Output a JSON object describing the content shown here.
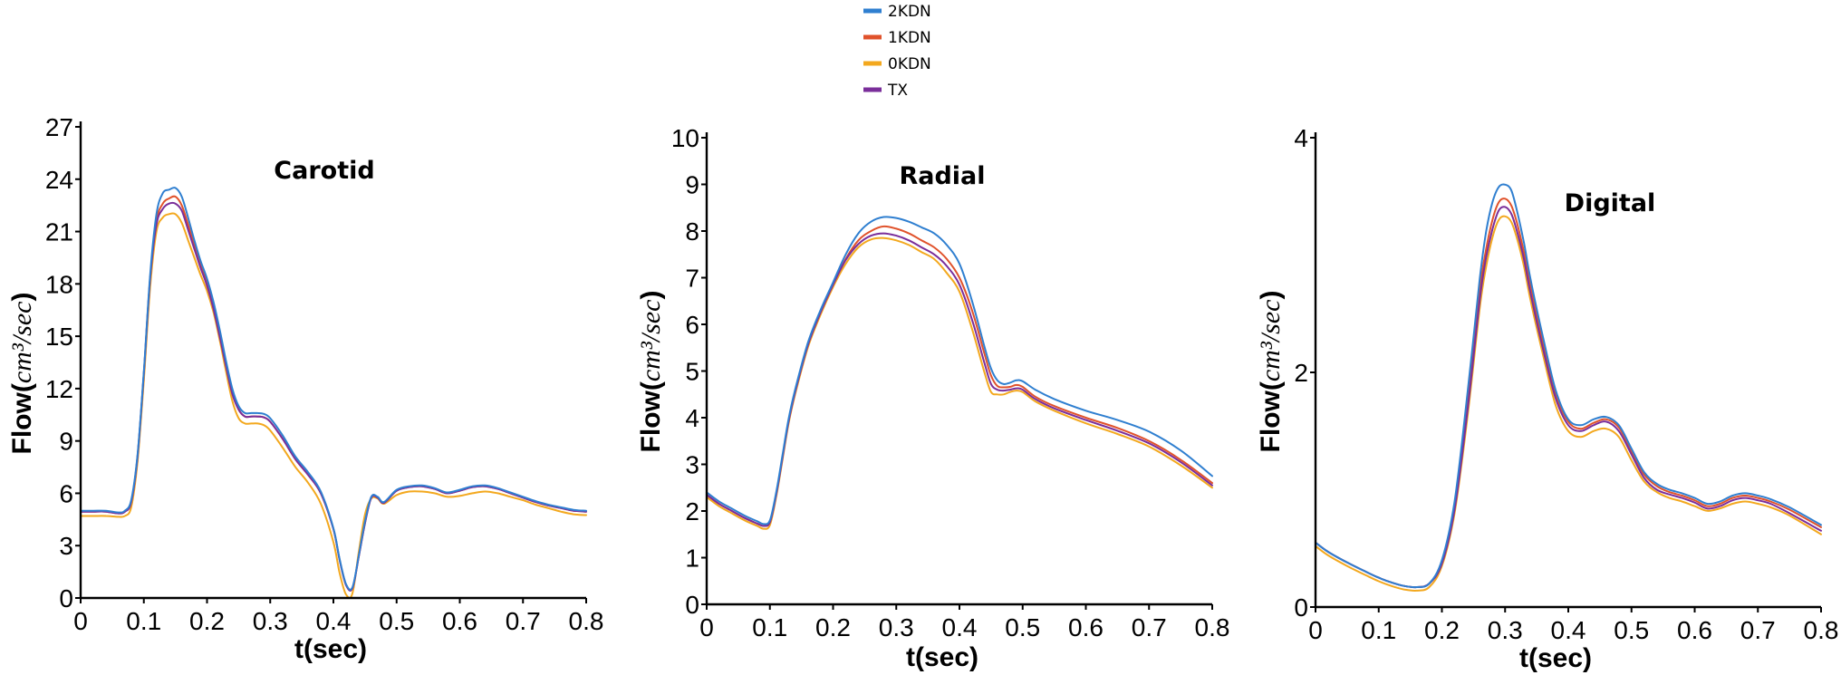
{
  "legend": [
    {
      "label": "2KDN",
      "color": "#2f7fd0"
    },
    {
      "label": "1KDN",
      "color": "#e0522b"
    },
    {
      "label": "0KDN",
      "color": "#f3a81e"
    },
    {
      "label": "TX",
      "color": "#7a2e9a"
    }
  ],
  "chart_data": [
    {
      "type": "line",
      "title": "Carotid",
      "xlabel": "t(sec)",
      "ylabel_prefix": "Flow(",
      "ylabel_math": "cm³/sec",
      "ylabel_suffix": ")",
      "xlim": [
        0,
        0.8
      ],
      "ylim": [
        0,
        27
      ],
      "xticks": [
        0,
        0.1,
        0.2,
        0.3,
        0.4,
        0.5,
        0.6,
        0.7,
        0.8
      ],
      "xtick_labels": [
        "0",
        "0.1",
        "0.2",
        "0.3",
        "0.4",
        "0.5",
        "0.6",
        "0.7",
        "0.8"
      ],
      "yticks": [
        0,
        3,
        6,
        9,
        12,
        15,
        18,
        21,
        24,
        27
      ],
      "ytick_labels": [
        "0",
        "3",
        "6",
        "9",
        "12",
        "15",
        "18",
        "21",
        "24",
        "27"
      ],
      "x": [
        0,
        0.02,
        0.04,
        0.06,
        0.07,
        0.08,
        0.09,
        0.1,
        0.11,
        0.12,
        0.13,
        0.14,
        0.15,
        0.16,
        0.17,
        0.18,
        0.19,
        0.2,
        0.21,
        0.22,
        0.23,
        0.24,
        0.25,
        0.26,
        0.27,
        0.28,
        0.29,
        0.3,
        0.32,
        0.34,
        0.36,
        0.38,
        0.4,
        0.41,
        0.42,
        0.43,
        0.44,
        0.45,
        0.46,
        0.47,
        0.48,
        0.5,
        0.52,
        0.54,
        0.56,
        0.58,
        0.6,
        0.62,
        0.64,
        0.66,
        0.68,
        0.7,
        0.72,
        0.74,
        0.76,
        0.78,
        0.8
      ],
      "series": [
        {
          "name": "2KDN",
          "values": [
            5.0,
            5.0,
            5.0,
            4.9,
            5.0,
            5.6,
            8.2,
            13.0,
            18.5,
            22.0,
            23.2,
            23.4,
            23.5,
            23.0,
            21.8,
            20.5,
            19.3,
            18.3,
            17.0,
            15.4,
            13.6,
            12.0,
            11.0,
            10.6,
            10.6,
            10.6,
            10.55,
            10.3,
            9.3,
            8.1,
            7.2,
            6.1,
            4.0,
            2.2,
            0.8,
            0.6,
            2.4,
            4.4,
            5.8,
            5.8,
            5.5,
            6.2,
            6.4,
            6.45,
            6.3,
            6.05,
            6.2,
            6.4,
            6.45,
            6.3,
            6.05,
            5.8,
            5.55,
            5.35,
            5.2,
            5.05,
            5.0
          ]
        },
        {
          "name": "1KDN",
          "values": [
            4.95,
            4.95,
            4.95,
            4.85,
            4.95,
            5.5,
            8.1,
            12.9,
            18.3,
            21.6,
            22.6,
            22.9,
            23.0,
            22.5,
            21.4,
            20.2,
            19.1,
            18.1,
            16.8,
            15.2,
            13.4,
            11.8,
            10.8,
            10.4,
            10.4,
            10.4,
            10.35,
            10.1,
            9.1,
            7.95,
            7.05,
            6.0,
            3.95,
            2.15,
            0.75,
            0.55,
            2.35,
            4.3,
            5.75,
            5.75,
            5.45,
            6.15,
            6.35,
            6.4,
            6.25,
            6.0,
            6.15,
            6.35,
            6.4,
            6.25,
            6.0,
            5.75,
            5.5,
            5.3,
            5.15,
            5.0,
            4.95
          ]
        },
        {
          "name": "0KDN",
          "values": [
            4.7,
            4.7,
            4.7,
            4.65,
            4.7,
            5.2,
            7.8,
            12.5,
            17.8,
            21.0,
            21.8,
            22.0,
            22.0,
            21.5,
            20.5,
            19.5,
            18.5,
            17.6,
            16.4,
            14.8,
            13.0,
            11.3,
            10.3,
            10.0,
            10.0,
            10.0,
            9.9,
            9.6,
            8.6,
            7.5,
            6.6,
            5.4,
            3.2,
            1.4,
            0.2,
            0.25,
            2.6,
            4.8,
            5.7,
            5.7,
            5.4,
            5.9,
            6.1,
            6.1,
            6.0,
            5.8,
            5.85,
            6.0,
            6.1,
            6.0,
            5.8,
            5.6,
            5.35,
            5.15,
            4.95,
            4.8,
            4.75
          ]
        },
        {
          "name": "TX",
          "values": [
            4.95,
            4.95,
            4.95,
            4.85,
            4.95,
            5.5,
            8.1,
            12.9,
            18.3,
            21.4,
            22.3,
            22.6,
            22.6,
            22.2,
            21.1,
            20.0,
            18.9,
            17.9,
            16.6,
            15.0,
            13.3,
            11.7,
            10.8,
            10.4,
            10.4,
            10.4,
            10.35,
            10.1,
            9.1,
            7.95,
            7.05,
            6.0,
            3.95,
            2.15,
            0.75,
            0.55,
            2.35,
            4.3,
            5.75,
            5.75,
            5.45,
            6.15,
            6.35,
            6.4,
            6.25,
            6.0,
            6.15,
            6.35,
            6.4,
            6.25,
            6.0,
            5.75,
            5.5,
            5.3,
            5.15,
            5.0,
            4.95
          ]
        }
      ]
    },
    {
      "type": "line",
      "title": "Radial",
      "xlabel": "t(sec)",
      "ylabel_prefix": "Flow(",
      "ylabel_math": "cm³/sec",
      "ylabel_suffix": ")",
      "xlim": [
        0,
        0.8
      ],
      "ylim": [
        0,
        10
      ],
      "xticks": [
        0,
        0.1,
        0.2,
        0.3,
        0.4,
        0.5,
        0.6,
        0.7,
        0.8
      ],
      "xtick_labels": [
        "0",
        "0.1",
        "0.2",
        "0.3",
        "0.4",
        "0.5",
        "0.6",
        "0.7",
        "0.8"
      ],
      "yticks": [
        0,
        1,
        2,
        3,
        4,
        5,
        6,
        7,
        8,
        9,
        10
      ],
      "ytick_labels": [
        "0",
        "1",
        "2",
        "3",
        "4",
        "5",
        "6",
        "7",
        "8",
        "9",
        "10"
      ],
      "x": [
        0,
        0.02,
        0.04,
        0.06,
        0.08,
        0.09,
        0.1,
        0.11,
        0.12,
        0.13,
        0.14,
        0.16,
        0.18,
        0.2,
        0.22,
        0.24,
        0.26,
        0.28,
        0.3,
        0.32,
        0.34,
        0.36,
        0.38,
        0.4,
        0.42,
        0.44,
        0.45,
        0.46,
        0.47,
        0.48,
        0.49,
        0.5,
        0.52,
        0.55,
        0.6,
        0.65,
        0.7,
        0.75,
        0.8
      ],
      "series": [
        {
          "name": "2KDN",
          "values": [
            2.4,
            2.2,
            2.05,
            1.9,
            1.78,
            1.72,
            1.8,
            2.4,
            3.2,
            4.0,
            4.6,
            5.6,
            6.3,
            6.9,
            7.5,
            7.95,
            8.2,
            8.3,
            8.28,
            8.2,
            8.08,
            7.95,
            7.7,
            7.3,
            6.5,
            5.5,
            5.05,
            4.8,
            4.72,
            4.75,
            4.8,
            4.78,
            4.6,
            4.4,
            4.15,
            3.95,
            3.7,
            3.3,
            2.75
          ]
        },
        {
          "name": "1KDN",
          "values": [
            2.35,
            2.15,
            2.0,
            1.85,
            1.73,
            1.68,
            1.76,
            2.35,
            3.15,
            3.95,
            4.55,
            5.55,
            6.25,
            6.85,
            7.4,
            7.8,
            8.0,
            8.1,
            8.05,
            7.95,
            7.8,
            7.65,
            7.4,
            7.0,
            6.3,
            5.35,
            4.9,
            4.68,
            4.65,
            4.66,
            4.7,
            4.66,
            4.45,
            4.25,
            4.0,
            3.78,
            3.5,
            3.1,
            2.6
          ]
        },
        {
          "name": "0KDN",
          "values": [
            2.3,
            2.1,
            1.95,
            1.8,
            1.68,
            1.62,
            1.7,
            2.3,
            3.1,
            3.9,
            4.5,
            5.5,
            6.2,
            6.8,
            7.3,
            7.65,
            7.82,
            7.85,
            7.8,
            7.7,
            7.55,
            7.4,
            7.1,
            6.7,
            5.9,
            4.95,
            4.55,
            4.5,
            4.5,
            4.55,
            4.58,
            4.55,
            4.35,
            4.15,
            3.88,
            3.65,
            3.38,
            2.98,
            2.5
          ]
        },
        {
          "name": "TX",
          "values": [
            2.35,
            2.15,
            2.0,
            1.85,
            1.73,
            1.68,
            1.76,
            2.35,
            3.15,
            3.95,
            4.55,
            5.55,
            6.25,
            6.85,
            7.38,
            7.72,
            7.9,
            7.95,
            7.9,
            7.8,
            7.65,
            7.5,
            7.25,
            6.85,
            6.1,
            5.15,
            4.72,
            4.6,
            4.58,
            4.6,
            4.63,
            4.6,
            4.4,
            4.2,
            3.95,
            3.72,
            3.45,
            3.05,
            2.55
          ]
        }
      ]
    },
    {
      "type": "line",
      "title": "Digital",
      "xlabel": "t(sec)",
      "ylabel_prefix": "Flow(",
      "ylabel_math": "cm³/sec",
      "ylabel_suffix": ")",
      "xlim": [
        0,
        0.8
      ],
      "ylim": [
        0,
        4
      ],
      "xticks": [
        0,
        0.1,
        0.2,
        0.3,
        0.4,
        0.5,
        0.6,
        0.7,
        0.8
      ],
      "xtick_labels": [
        "0",
        "0.1",
        "0.2",
        "0.3",
        "0.4",
        "0.5",
        "0.6",
        "0.7",
        "0.8"
      ],
      "yticks": [
        0,
        2,
        4
      ],
      "ytick_labels": [
        "0",
        "2",
        "4"
      ],
      "x": [
        0,
        0.02,
        0.05,
        0.08,
        0.1,
        0.12,
        0.14,
        0.16,
        0.18,
        0.2,
        0.22,
        0.24,
        0.26,
        0.27,
        0.28,
        0.29,
        0.3,
        0.31,
        0.32,
        0.33,
        0.34,
        0.36,
        0.38,
        0.4,
        0.42,
        0.44,
        0.46,
        0.48,
        0.5,
        0.52,
        0.54,
        0.56,
        0.58,
        0.6,
        0.62,
        0.64,
        0.66,
        0.68,
        0.7,
        0.72,
        0.75,
        0.8
      ],
      "series": [
        {
          "name": "2KDN",
          "values": [
            0.55,
            0.47,
            0.38,
            0.3,
            0.25,
            0.21,
            0.18,
            0.17,
            0.2,
            0.4,
            0.9,
            1.8,
            2.8,
            3.2,
            3.45,
            3.58,
            3.6,
            3.55,
            3.35,
            3.1,
            2.8,
            2.3,
            1.85,
            1.6,
            1.55,
            1.6,
            1.62,
            1.55,
            1.35,
            1.15,
            1.05,
            1.0,
            0.97,
            0.93,
            0.88,
            0.9,
            0.95,
            0.97,
            0.95,
            0.92,
            0.85,
            0.7
          ]
        },
        {
          "name": "1KDN",
          "values": [
            0.55,
            0.47,
            0.38,
            0.3,
            0.25,
            0.21,
            0.18,
            0.17,
            0.2,
            0.38,
            0.85,
            1.7,
            2.7,
            3.05,
            3.3,
            3.45,
            3.48,
            3.42,
            3.25,
            3.02,
            2.75,
            2.25,
            1.82,
            1.58,
            1.52,
            1.57,
            1.6,
            1.53,
            1.33,
            1.13,
            1.03,
            0.98,
            0.95,
            0.91,
            0.86,
            0.88,
            0.93,
            0.95,
            0.93,
            0.9,
            0.83,
            0.68
          ]
        },
        {
          "name": "0KDN",
          "values": [
            0.52,
            0.44,
            0.35,
            0.27,
            0.22,
            0.18,
            0.15,
            0.14,
            0.17,
            0.35,
            0.8,
            1.6,
            2.55,
            2.9,
            3.15,
            3.3,
            3.33,
            3.28,
            3.12,
            2.9,
            2.62,
            2.15,
            1.72,
            1.5,
            1.45,
            1.5,
            1.52,
            1.45,
            1.25,
            1.07,
            0.98,
            0.93,
            0.9,
            0.86,
            0.82,
            0.84,
            0.88,
            0.9,
            0.88,
            0.85,
            0.78,
            0.62
          ]
        },
        {
          "name": "TX",
          "values": [
            0.55,
            0.47,
            0.38,
            0.3,
            0.25,
            0.21,
            0.18,
            0.17,
            0.2,
            0.37,
            0.83,
            1.65,
            2.62,
            2.98,
            3.22,
            3.38,
            3.41,
            3.35,
            3.18,
            2.96,
            2.68,
            2.2,
            1.78,
            1.55,
            1.5,
            1.55,
            1.58,
            1.5,
            1.3,
            1.1,
            1.0,
            0.96,
            0.93,
            0.89,
            0.84,
            0.86,
            0.91,
            0.93,
            0.91,
            0.88,
            0.8,
            0.65
          ]
        }
      ]
    }
  ]
}
